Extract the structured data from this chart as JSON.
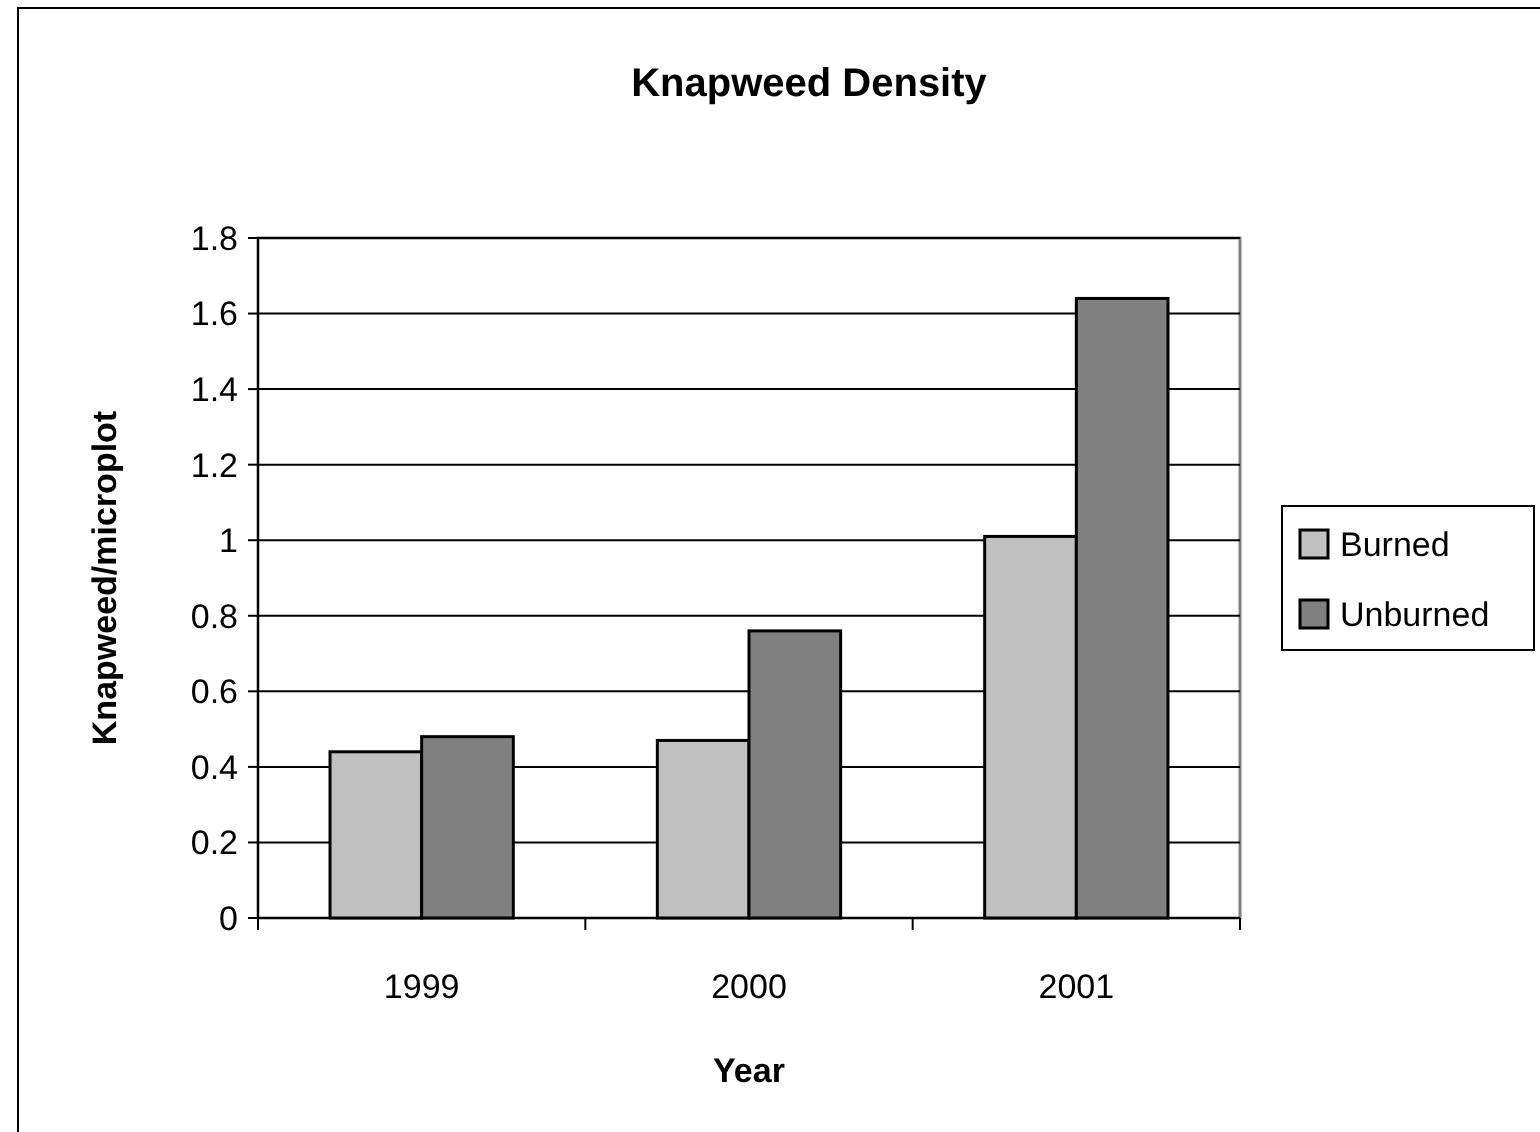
{
  "chart_data": {
    "type": "bar",
    "title": "Knapweed Density",
    "xlabel": "Year",
    "ylabel": "Knapweed/microplot",
    "categories": [
      "1999",
      "2000",
      "2001"
    ],
    "series": [
      {
        "name": "Burned",
        "color": "#c0c0c0",
        "values": [
          0.44,
          0.47,
          1.01
        ]
      },
      {
        "name": "Unburned",
        "color": "#808080",
        "values": [
          0.48,
          0.76,
          1.64
        ]
      }
    ],
    "ylim": [
      0,
      1.8
    ],
    "yticks": [
      0,
      0.2,
      0.4,
      0.6,
      0.8,
      1,
      1.2,
      1.4,
      1.6,
      1.8
    ],
    "grid": "y",
    "legend": "right"
  }
}
